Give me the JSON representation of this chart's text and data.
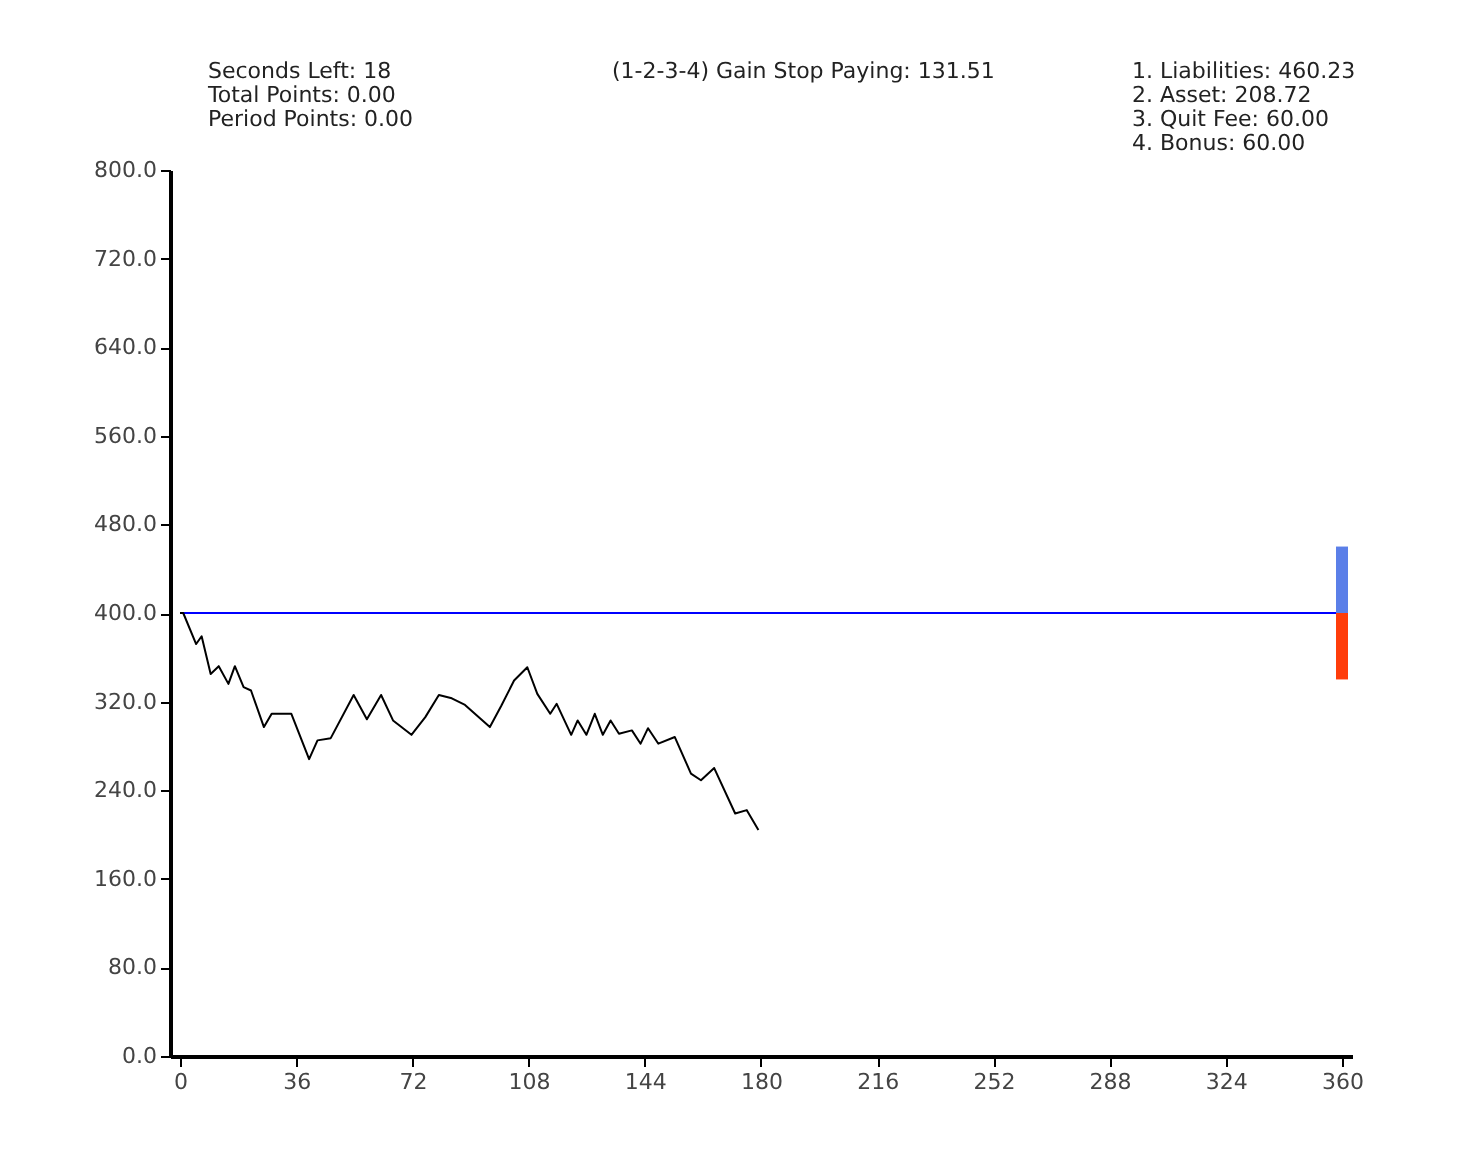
{
  "chart_data": {
    "type": "line",
    "annotations": [
      "Seconds Left: 18",
      "Total Points: 0.00",
      "Period Points: 0.00",
      "(1-2-3-4) Gain Stop Paying: 131.51",
      "1. Liabilities: 460.23",
      "2. Asset: 208.72",
      "3. Quit Fee: 60.00",
      "4. Bonus: 60.00"
    ],
    "xlim": [
      0,
      360
    ],
    "xticks": [
      0,
      36,
      72,
      108,
      144,
      180,
      216,
      252,
      288,
      324,
      360
    ],
    "ylim": [
      0,
      800
    ],
    "yticks": [
      {
        "value": 0,
        "label": "0.0"
      },
      {
        "value": 80,
        "label": "80.0"
      },
      {
        "value": 160,
        "label": "160.0"
      },
      {
        "value": 240,
        "label": "240.0"
      },
      {
        "value": 320,
        "label": "320.0"
      },
      {
        "value": 400,
        "label": "400.0"
      },
      {
        "value": 480,
        "label": "480.0"
      },
      {
        "value": 560,
        "label": "560.0"
      },
      {
        "value": 640,
        "label": "640.0"
      },
      {
        "value": 720,
        "label": "720.0"
      },
      {
        "value": 800,
        "label": "800.0"
      }
    ],
    "grid": false,
    "line_style": "solid",
    "marker": "none",
    "ref_lines": [
      {
        "axis": "y",
        "value": 400,
        "color": "#0000ff"
      }
    ],
    "series": [
      {
        "color": "#000000",
        "x": [
          0,
          1,
          5,
          6.7,
          9.5,
          12,
          15,
          17,
          19.7,
          22,
          26,
          28.4,
          34.5,
          40,
          42.6,
          46.7,
          53.8,
          57.9,
          62.3,
          66,
          71.7,
          76,
          80.2,
          84.2,
          88.3,
          96,
          99.5,
          103.5,
          107.6,
          110.7,
          114.7,
          116.7,
          121.2,
          123.2,
          125.9,
          128.5,
          131,
          133.4,
          136,
          140,
          142.7,
          145,
          148.2,
          153.3,
          158.3,
          161.4,
          165.5,
          172,
          175.6,
          179.2
        ],
        "values": [
          400,
          400,
          372,
          379,
          345,
          352,
          336,
          352,
          333,
          330,
          297,
          309,
          309,
          268,
          285,
          287,
          326,
          304,
          326,
          303,
          290,
          306,
          326,
          323,
          317,
          297,
          316,
          339,
          351,
          327,
          309,
          318,
          290,
          303,
          290,
          309,
          290,
          303,
          291,
          294,
          282,
          296,
          282,
          288,
          255,
          249,
          260,
          219,
          222,
          204
        ]
      },
      {
        "type": "bar",
        "color": "#5b7fe8",
        "x": [
          360
        ],
        "base": [
          400
        ],
        "values": [
          60
        ]
      },
      {
        "type": "bar",
        "color": "#ff3d0a",
        "x": [
          360
        ],
        "base": [
          340
        ],
        "values": [
          60
        ]
      }
    ]
  }
}
